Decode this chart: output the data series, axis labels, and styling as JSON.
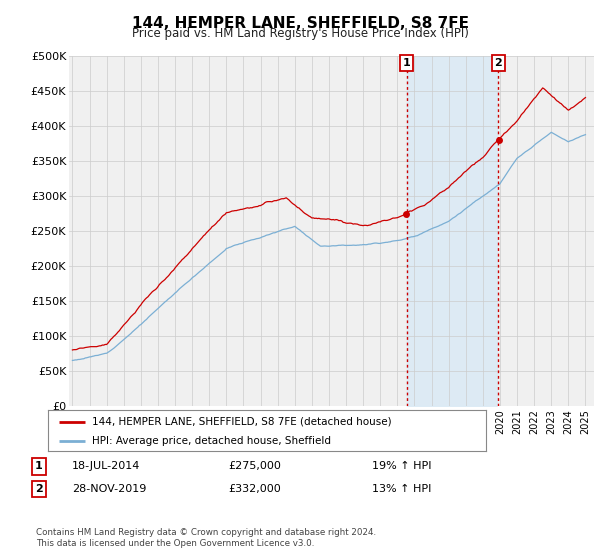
{
  "title": "144, HEMPER LANE, SHEFFIELD, S8 7FE",
  "subtitle": "Price paid vs. HM Land Registry's House Price Index (HPI)",
  "ylabel_ticks": [
    "£0",
    "£50K",
    "£100K",
    "£150K",
    "£200K",
    "£250K",
    "£300K",
    "£350K",
    "£400K",
    "£450K",
    "£500K"
  ],
  "ytick_values": [
    0,
    50000,
    100000,
    150000,
    200000,
    250000,
    300000,
    350000,
    400000,
    450000,
    500000
  ],
  "xlim_start": 1994.8,
  "xlim_end": 2025.5,
  "ylim": [
    0,
    500000
  ],
  "sale1_date": 2014.54,
  "sale1_price": 275000,
  "sale2_date": 2019.91,
  "sale2_price": 332000,
  "hpi_color": "#7bafd4",
  "price_color": "#cc0000",
  "vline_color": "#cc0000",
  "shade_color": "#daeaf5",
  "legend_house": "144, HEMPER LANE, SHEFFIELD, S8 7FE (detached house)",
  "legend_hpi": "HPI: Average price, detached house, Sheffield",
  "note1_date": "18-JUL-2014",
  "note1_price": "£275,000",
  "note1_hpi": "19% ↑ HPI",
  "note2_date": "28-NOV-2019",
  "note2_price": "£332,000",
  "note2_hpi": "13% ↑ HPI",
  "footer": "Contains HM Land Registry data © Crown copyright and database right 2024.\nThis data is licensed under the Open Government Licence v3.0.",
  "background_color": "#ffffff",
  "plot_bg_color": "#f0f0f0"
}
